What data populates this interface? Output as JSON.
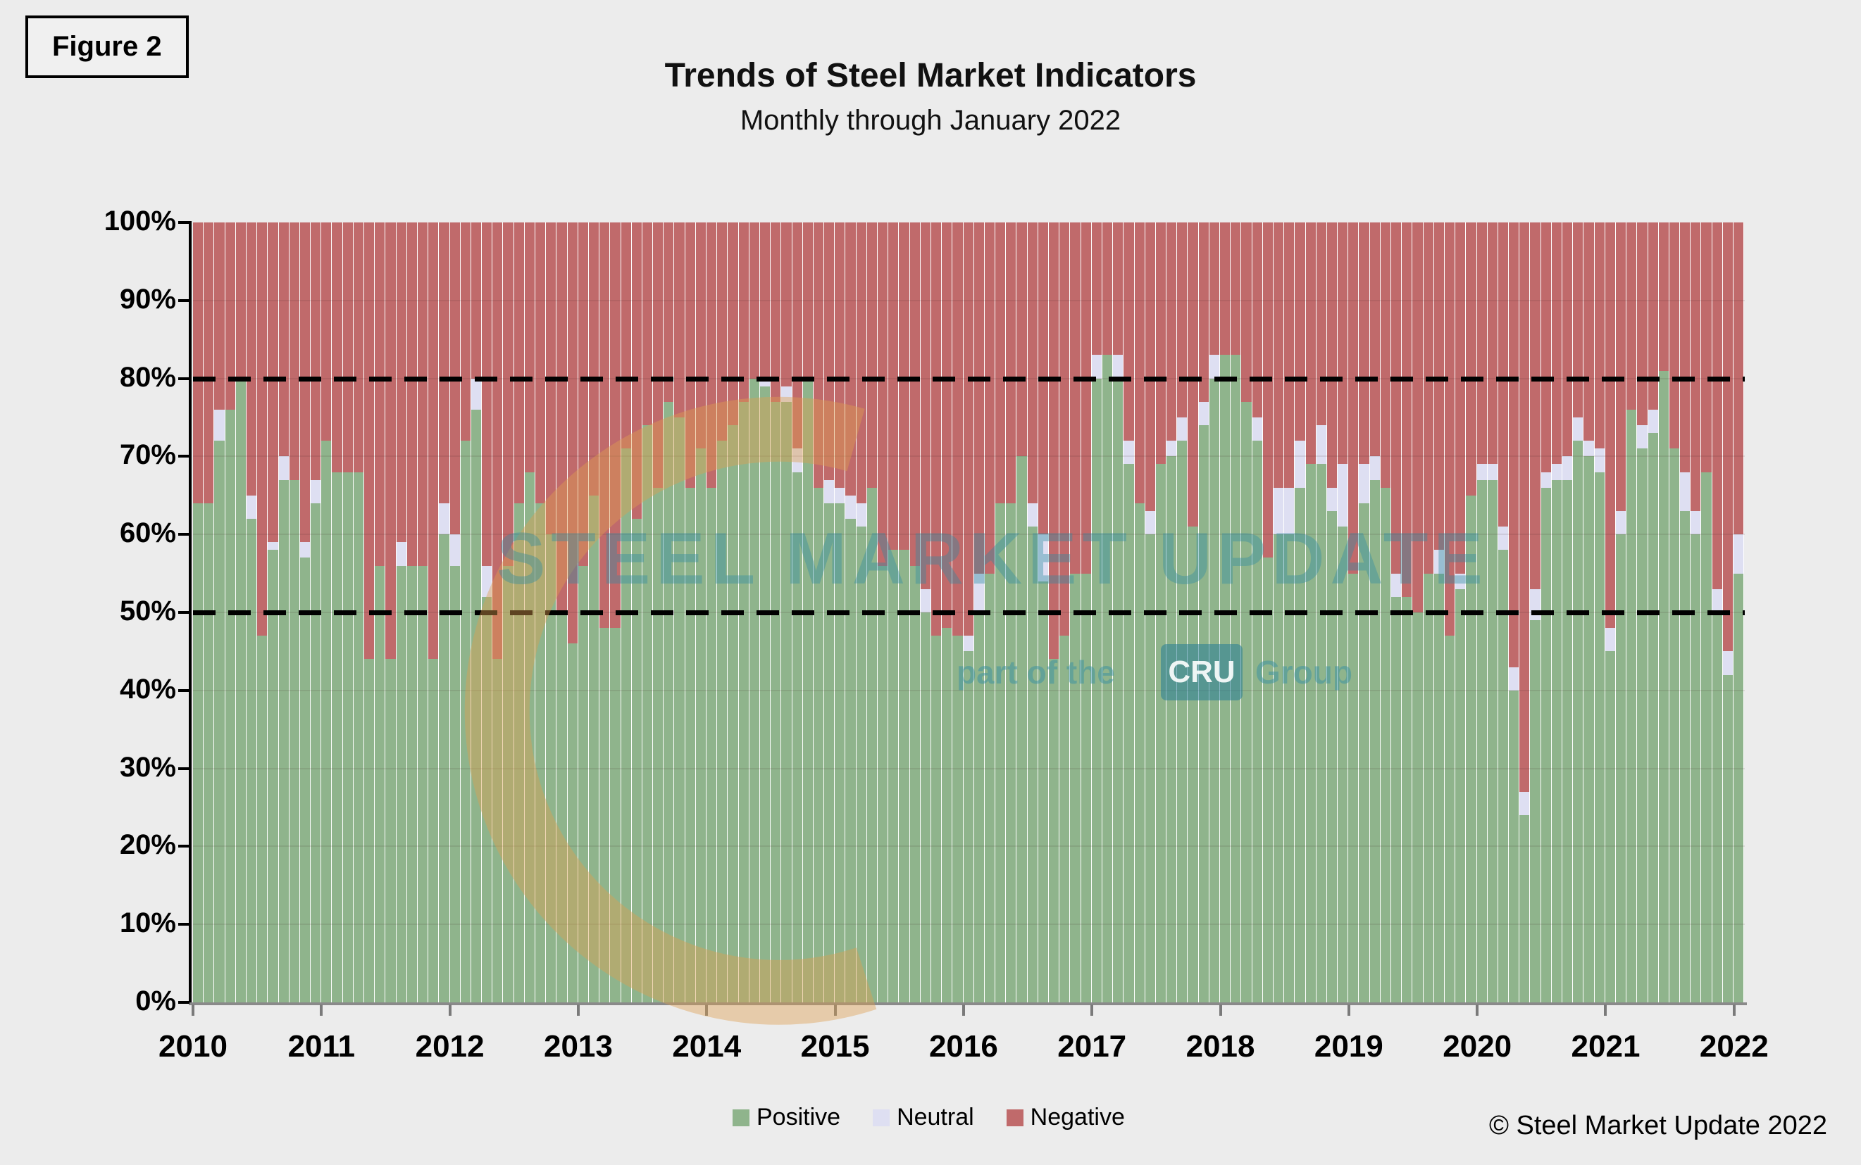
{
  "figure_label": "Figure 2",
  "header": {
    "title": "Trends of Steel Market Indicators",
    "subtitle": "Monthly through January 2022"
  },
  "watermark": {
    "main": "STEEL MARKET UPDATE",
    "part_of_the": "part of the",
    "cru": "CRU",
    "group": "Group"
  },
  "legend": {
    "items": [
      {
        "label": "Positive",
        "color": "#8fb48c"
      },
      {
        "label": "Neutral",
        "color": "#dedff2"
      },
      {
        "label": "Negative",
        "color": "#c06a6b"
      }
    ]
  },
  "copyright": "© Steel Market Update 2022",
  "colors": {
    "positive": "#8fb48c",
    "neutral": "#dedff2",
    "negative": "#c06a6b",
    "background": "#ececec",
    "watermark_teal": "#2f8ca3",
    "watermark_orange": "#dfa050"
  },
  "chart_data": {
    "type": "bar",
    "variant": "stacked-100-percent",
    "title": "Trends of Steel Market Indicators",
    "subtitle": "Monthly through January 2022",
    "xlabel": "",
    "ylabel": "",
    "ylim": [
      0,
      100
    ],
    "grid": "horizontal, every 10%",
    "legend_position": "bottom-center",
    "reference_lines_pct": [
      80,
      50
    ],
    "y_tick_labels": [
      "0%",
      "10%",
      "20%",
      "30%",
      "40%",
      "50%",
      "60%",
      "70%",
      "80%",
      "90%",
      "100%"
    ],
    "x_tick_labels": [
      "2010",
      "2011",
      "2012",
      "2013",
      "2014",
      "2015",
      "2016",
      "2017",
      "2018",
      "2019",
      "2020",
      "2021",
      "2022"
    ],
    "x_start_month": "2010-01",
    "x_end_month": "2022-01",
    "months_per_xtick": 12,
    "negative_rule": "negative = 100 - positive - neutral",
    "series": [
      {
        "name": "Positive",
        "values": [
          64,
          64,
          72,
          76,
          80,
          62,
          47,
          58,
          67,
          67,
          57,
          64,
          72,
          68,
          68,
          68,
          44,
          56,
          44,
          56,
          56,
          56,
          44,
          60,
          56,
          72,
          76,
          52,
          44,
          56,
          64,
          68,
          64,
          60,
          50,
          46,
          56,
          65,
          48,
          48,
          71,
          62,
          74,
          66,
          77,
          75,
          66,
          71,
          66,
          72,
          74,
          77,
          80,
          79,
          77,
          77,
          68,
          80,
          66,
          64,
          64,
          62,
          61,
          66,
          56,
          58,
          58,
          56,
          50,
          47,
          48,
          47,
          45,
          50,
          55,
          64,
          64,
          70,
          61,
          54,
          44,
          47,
          55,
          55,
          80,
          83,
          80,
          69,
          64,
          60,
          69,
          70,
          72,
          61,
          74,
          80,
          83,
          83,
          77,
          72,
          57,
          60,
          60,
          66,
          69,
          69,
          63,
          61,
          55,
          64,
          67,
          66,
          52,
          52,
          50,
          55,
          55,
          47,
          53,
          65,
          67,
          67,
          58,
          40,
          24,
          49,
          66,
          67,
          67,
          72,
          70,
          68,
          45,
          60,
          76,
          71,
          73,
          81,
          71,
          63,
          60,
          68,
          50,
          42,
          55
        ]
      },
      {
        "name": "Neutral",
        "values": [
          0,
          0,
          4,
          0,
          0,
          3,
          0,
          1,
          3,
          0,
          2,
          3,
          0,
          0,
          0,
          0,
          0,
          0,
          0,
          3,
          0,
          0,
          0,
          4,
          4,
          0,
          4,
          4,
          0,
          0,
          0,
          0,
          0,
          0,
          0,
          0,
          0,
          0,
          0,
          0,
          0,
          0,
          0,
          0,
          0,
          0,
          0,
          0,
          0,
          0,
          0,
          0,
          0,
          1,
          0,
          2,
          3,
          0,
          0,
          3,
          2,
          3,
          3,
          0,
          0,
          0,
          0,
          0,
          3,
          0,
          0,
          0,
          2,
          5,
          0,
          0,
          0,
          0,
          3,
          6,
          0,
          0,
          0,
          0,
          3,
          0,
          3,
          3,
          0,
          3,
          0,
          2,
          3,
          0,
          3,
          3,
          0,
          0,
          0,
          3,
          0,
          6,
          6,
          6,
          0,
          5,
          3,
          8,
          0,
          5,
          3,
          0,
          3,
          0,
          0,
          0,
          3,
          0,
          2,
          0,
          2,
          2,
          3,
          3,
          3,
          4,
          2,
          2,
          3,
          3,
          2,
          3,
          3,
          3,
          0,
          3,
          3,
          0,
          0,
          5,
          3,
          0,
          3,
          3,
          5
        ]
      }
    ]
  }
}
